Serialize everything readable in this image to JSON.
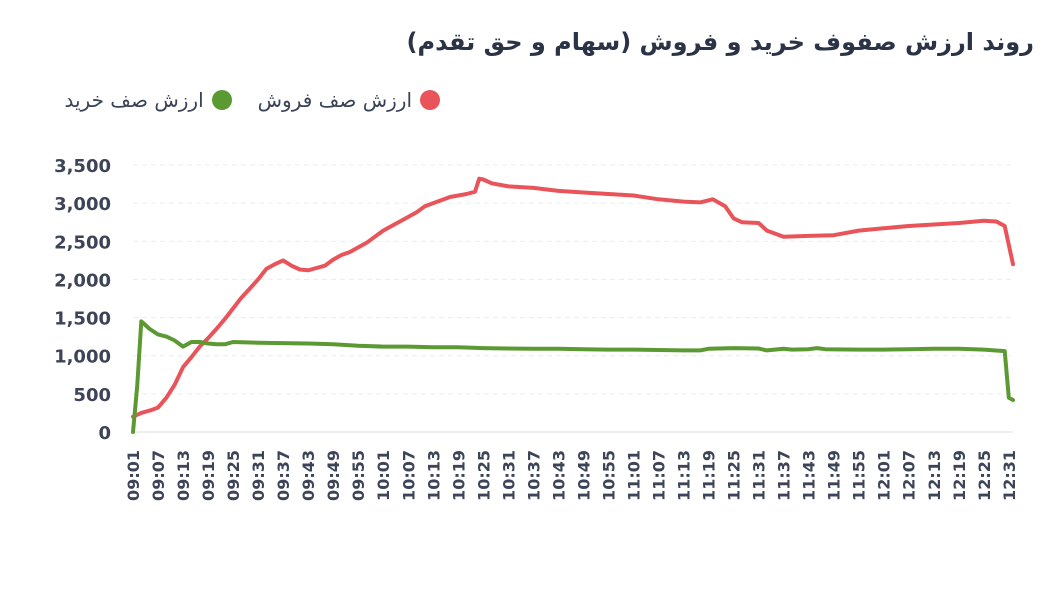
{
  "title": "روند ارزش صفوف خرید و فروش (سهام و حق تقدم)",
  "chart_data": {
    "type": "line",
    "title": "روند ارزش صفوف خرید و فروش (سهام و حق تقدم)",
    "xlabel": "",
    "ylabel": "",
    "legend_position": "top-right",
    "grid": true,
    "ylim": [
      0,
      3500
    ],
    "y_ticks": [
      "0",
      "500",
      "1,000",
      "1,500",
      "2,000",
      "2,500",
      "3,000",
      "3,500"
    ],
    "x_ticks": [
      "09:01",
      "09:07",
      "09:13",
      "09:19",
      "09:25",
      "09:31",
      "09:37",
      "09:43",
      "09:49",
      "09:55",
      "10:01",
      "10:07",
      "10:13",
      "10:19",
      "10:25",
      "10:31",
      "10:37",
      "10:43",
      "10:49",
      "10:55",
      "11:01",
      "11:07",
      "11:13",
      "11:19",
      "11:25",
      "11:31",
      "11:37",
      "11:43",
      "11:49",
      "11:55",
      "12:01",
      "12:07",
      "12:13",
      "12:19",
      "12:25",
      "12:31"
    ],
    "x_range": [
      "09:01",
      "12:32"
    ],
    "series": [
      {
        "name": "ارزش صف فروش",
        "color": "#e8545a",
        "points": [
          [
            "09:01",
            200
          ],
          [
            "09:03",
            250
          ],
          [
            "09:05",
            280
          ],
          [
            "09:07",
            320
          ],
          [
            "09:09",
            450
          ],
          [
            "09:11",
            620
          ],
          [
            "09:13",
            850
          ],
          [
            "09:15",
            980
          ],
          [
            "09:17",
            1120
          ],
          [
            "09:19",
            1230
          ],
          [
            "09:21",
            1350
          ],
          [
            "09:23",
            1480
          ],
          [
            "09:25",
            1620
          ],
          [
            "09:27",
            1760
          ],
          [
            "09:29",
            1880
          ],
          [
            "09:31",
            2000
          ],
          [
            "09:33",
            2140
          ],
          [
            "09:35",
            2200
          ],
          [
            "09:37",
            2250
          ],
          [
            "09:39",
            2180
          ],
          [
            "09:41",
            2130
          ],
          [
            "09:43",
            2120
          ],
          [
            "09:45",
            2150
          ],
          [
            "09:47",
            2180
          ],
          [
            "09:49",
            2260
          ],
          [
            "09:51",
            2320
          ],
          [
            "09:53",
            2360
          ],
          [
            "09:55",
            2420
          ],
          [
            "09:57",
            2480
          ],
          [
            "09:59",
            2560
          ],
          [
            "10:01",
            2640
          ],
          [
            "10:03",
            2700
          ],
          [
            "10:05",
            2760
          ],
          [
            "10:07",
            2820
          ],
          [
            "10:09",
            2880
          ],
          [
            "10:11",
            2960
          ],
          [
            "10:13",
            3000
          ],
          [
            "10:15",
            3040
          ],
          [
            "10:17",
            3080
          ],
          [
            "10:19",
            3100
          ],
          [
            "10:21",
            3120
          ],
          [
            "10:23",
            3150
          ],
          [
            "10:24",
            3320
          ],
          [
            "10:25",
            3310
          ],
          [
            "10:27",
            3260
          ],
          [
            "10:31",
            3220
          ],
          [
            "10:37",
            3200
          ],
          [
            "10:43",
            3160
          ],
          [
            "10:49",
            3140
          ],
          [
            "10:55",
            3120
          ],
          [
            "11:01",
            3100
          ],
          [
            "11:07",
            3050
          ],
          [
            "11:13",
            3020
          ],
          [
            "11:17",
            3010
          ],
          [
            "11:20",
            3050
          ],
          [
            "11:23",
            2960
          ],
          [
            "11:25",
            2800
          ],
          [
            "11:27",
            2750
          ],
          [
            "11:31",
            2740
          ],
          [
            "11:33",
            2640
          ],
          [
            "11:37",
            2560
          ],
          [
            "11:43",
            2570
          ],
          [
            "11:49",
            2580
          ],
          [
            "11:55",
            2640
          ],
          [
            "12:01",
            2670
          ],
          [
            "12:07",
            2700
          ],
          [
            "12:13",
            2720
          ],
          [
            "12:19",
            2740
          ],
          [
            "12:25",
            2770
          ],
          [
            "12:28",
            2760
          ],
          [
            "12:30",
            2700
          ],
          [
            "12:32",
            2200
          ]
        ]
      },
      {
        "name": "ارزش صف خرید",
        "color": "#5b9a32",
        "points": [
          [
            "09:01",
            0
          ],
          [
            "09:02",
            600
          ],
          [
            "09:03",
            1450
          ],
          [
            "09:05",
            1350
          ],
          [
            "09:07",
            1280
          ],
          [
            "09:09",
            1250
          ],
          [
            "09:11",
            1200
          ],
          [
            "09:13",
            1120
          ],
          [
            "09:15",
            1180
          ],
          [
            "09:17",
            1180
          ],
          [
            "09:19",
            1160
          ],
          [
            "09:21",
            1150
          ],
          [
            "09:23",
            1150
          ],
          [
            "09:25",
            1180
          ],
          [
            "09:31",
            1170
          ],
          [
            "09:37",
            1165
          ],
          [
            "09:43",
            1160
          ],
          [
            "09:49",
            1150
          ],
          [
            "09:55",
            1130
          ],
          [
            "10:01",
            1120
          ],
          [
            "10:07",
            1120
          ],
          [
            "10:13",
            1110
          ],
          [
            "10:19",
            1110
          ],
          [
            "10:25",
            1100
          ],
          [
            "10:31",
            1095
          ],
          [
            "10:37",
            1090
          ],
          [
            "10:43",
            1090
          ],
          [
            "10:49",
            1085
          ],
          [
            "10:55",
            1080
          ],
          [
            "11:01",
            1080
          ],
          [
            "11:07",
            1075
          ],
          [
            "11:13",
            1070
          ],
          [
            "11:17",
            1070
          ],
          [
            "11:19",
            1090
          ],
          [
            "11:25",
            1100
          ],
          [
            "11:31",
            1095
          ],
          [
            "11:33",
            1070
          ],
          [
            "11:37",
            1090
          ],
          [
            "11:39",
            1080
          ],
          [
            "11:43",
            1085
          ],
          [
            "11:45",
            1100
          ],
          [
            "11:47",
            1085
          ],
          [
            "11:55",
            1080
          ],
          [
            "12:01",
            1080
          ],
          [
            "12:07",
            1085
          ],
          [
            "12:13",
            1090
          ],
          [
            "12:19",
            1090
          ],
          [
            "12:25",
            1080
          ],
          [
            "12:30",
            1060
          ],
          [
            "12:31",
            450
          ],
          [
            "12:32",
            420
          ]
        ]
      }
    ]
  }
}
